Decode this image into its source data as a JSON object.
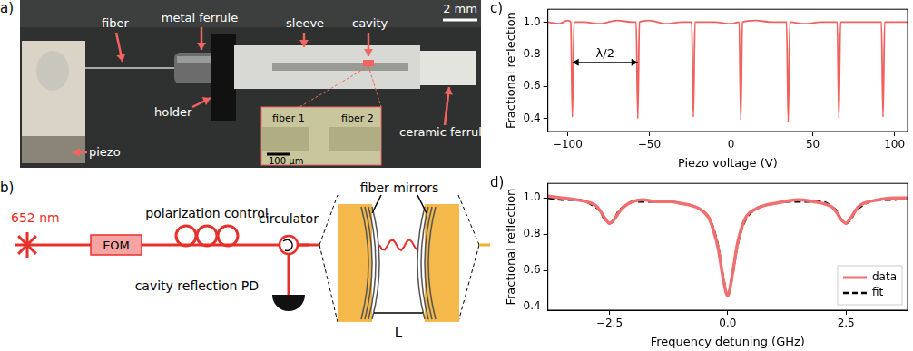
{
  "photo": {
    "panel": "a)",
    "scale_bar": "2 mm",
    "labels": {
      "fiber": "fiber",
      "metal_ferrule": "metal ferrule",
      "sleeve": "sleeve",
      "cavity": "cavity",
      "piezo": "piezo",
      "holder": "holder",
      "ceramic_ferrule": "ceramic ferrule"
    },
    "inset": {
      "labels": [
        "fiber 1",
        "fiber 2"
      ],
      "scale_bar": "100 µm"
    }
  },
  "diagram": {
    "panel": "b)",
    "laser": "652 nm",
    "modulator": "EOM",
    "polarization": "polarization control",
    "circulator": "circulator",
    "detector": "cavity reflection PD",
    "mirrors": "fiber mirrors",
    "length": "L"
  },
  "chart_data": [
    {
      "panel": "c)",
      "type": "line",
      "x_label": "Piezo voltage (V)",
      "y_label": "Fractional reflection",
      "x": [
        -112,
        -105,
        -100,
        -98,
        -97,
        -96,
        -90,
        -80,
        -70,
        -60,
        -58,
        -57,
        -56,
        -50,
        -40,
        -30,
        -24,
        -23,
        -22,
        -10,
        0,
        5,
        6,
        7,
        15,
        25,
        34,
        35,
        36,
        45,
        55,
        65,
        66,
        67,
        80,
        92,
        93,
        94,
        100,
        108
      ],
      "values": [
        1.0,
        0.99,
        1.01,
        1.0,
        0.41,
        1.0,
        1.0,
        0.99,
        1.01,
        1.0,
        1.0,
        0.4,
        1.0,
        1.01,
        0.99,
        1.0,
        1.0,
        0.41,
        1.0,
        1.0,
        0.99,
        1.0,
        0.39,
        1.0,
        1.01,
        1.0,
        1.0,
        0.38,
        1.0,
        0.99,
        1.0,
        1.0,
        0.4,
        1.0,
        1.0,
        1.0,
        0.41,
        1.0,
        1.0,
        1.0
      ],
      "color": "#f0605d",
      "xlim": [
        -112,
        108
      ],
      "xticks": [
        {
          "value": -100,
          "label": "−100"
        },
        {
          "value": -50,
          "label": "−50"
        },
        0,
        50,
        100
      ],
      "ylim": [
        0.32,
        1.08
      ],
      "yticks": [
        0.4,
        0.6,
        0.8,
        {
          "value": 1,
          "label": "1.0"
        }
      ],
      "grid": false,
      "annotations": [
        {
          "text": "λ/2",
          "x_from": -97,
          "x_to": -57,
          "y": 0.75
        }
      ]
    },
    {
      "panel": "d)",
      "type": "line",
      "x_label": "Frequency detuning (GHz)",
      "y_label": "Fractional reflection",
      "x": [
        -3.8,
        -3.5,
        -3.2,
        -3.0,
        -2.8,
        -2.7,
        -2.6,
        -2.5,
        -2.4,
        -2.3,
        -2.2,
        -2.0,
        -1.8,
        -1.5,
        -1.2,
        -1.0,
        -0.8,
        -0.6,
        -0.4,
        -0.3,
        -0.2,
        -0.1,
        0,
        0.1,
        0.2,
        0.3,
        0.4,
        0.6,
        0.8,
        1.0,
        1.2,
        1.5,
        1.8,
        2.0,
        2.2,
        2.3,
        2.4,
        2.5,
        2.6,
        2.7,
        2.8,
        3.0,
        3.2,
        3.5,
        3.8
      ],
      "series": [
        {
          "name": "data",
          "color": "#f07070",
          "line_style": "solid",
          "values": [
            1.01,
            1.0,
            0.99,
            0.98,
            0.96,
            0.93,
            0.89,
            0.86,
            0.88,
            0.92,
            0.95,
            0.98,
            0.99,
            0.98,
            0.98,
            0.97,
            0.96,
            0.94,
            0.89,
            0.82,
            0.72,
            0.56,
            0.46,
            0.58,
            0.74,
            0.84,
            0.9,
            0.94,
            0.96,
            0.97,
            0.98,
            0.99,
            0.98,
            0.97,
            0.95,
            0.92,
            0.88,
            0.86,
            0.89,
            0.93,
            0.96,
            0.98,
            0.99,
            1.0,
            1.0
          ]
        },
        {
          "name": "fit",
          "color": "#000000",
          "line_style": "dashed",
          "values": [
            1.0,
            0.99,
            0.99,
            0.98,
            0.95,
            0.93,
            0.88,
            0.86,
            0.88,
            0.93,
            0.95,
            0.98,
            0.98,
            0.98,
            0.98,
            0.97,
            0.96,
            0.94,
            0.89,
            0.83,
            0.73,
            0.57,
            0.46,
            0.57,
            0.73,
            0.83,
            0.89,
            0.94,
            0.96,
            0.97,
            0.98,
            0.98,
            0.98,
            0.98,
            0.95,
            0.93,
            0.88,
            0.86,
            0.88,
            0.93,
            0.95,
            0.98,
            0.99,
            0.99,
            1.0
          ]
        }
      ],
      "xlim": [
        -3.8,
        3.8
      ],
      "xticks": [
        {
          "value": -2.5,
          "label": "−2.5"
        },
        {
          "value": 0,
          "label": "0.0"
        },
        2.5
      ],
      "ylim": [
        0.38,
        1.08
      ],
      "yticks": [
        0.4,
        0.6,
        0.8,
        {
          "value": 1,
          "label": "1.0"
        }
      ],
      "grid": false,
      "legend": "lower right"
    }
  ]
}
